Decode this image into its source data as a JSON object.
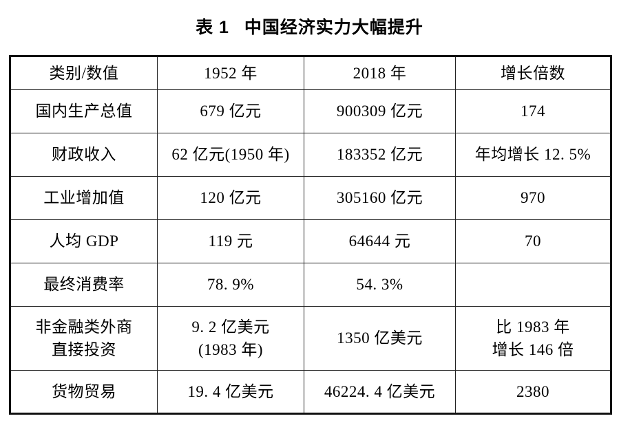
{
  "page": {
    "background": "#ffffff",
    "text_color": "#000000",
    "border_color": "#111111"
  },
  "title": {
    "label": "表 1",
    "text": "中国经济实力大幅提升"
  },
  "table": {
    "headers": [
      "类别/数值",
      "1952 年",
      "2018 年",
      "增长倍数"
    ],
    "rows": [
      [
        "国内生产总值",
        "679 亿元",
        "900309 亿元",
        "174"
      ],
      [
        "财政收入",
        "62 亿元(1950 年)",
        "183352 亿元",
        "年均增长 12. 5%"
      ],
      [
        "工业增加值",
        "120 亿元",
        "305160 亿元",
        "970"
      ],
      [
        "人均 GDP",
        "119 元",
        "64644 元",
        "70"
      ],
      [
        "最终消费率",
        "78. 9%",
        "54. 3%",
        ""
      ],
      [
        "非金融类外商\n直接投资",
        "9. 2 亿美元\n(1983 年)",
        "1350 亿美元",
        "比 1983 年\n增长 146 倍"
      ],
      [
        "货物贸易",
        "19. 4 亿美元",
        "46224. 4 亿美元",
        "2380"
      ]
    ]
  }
}
